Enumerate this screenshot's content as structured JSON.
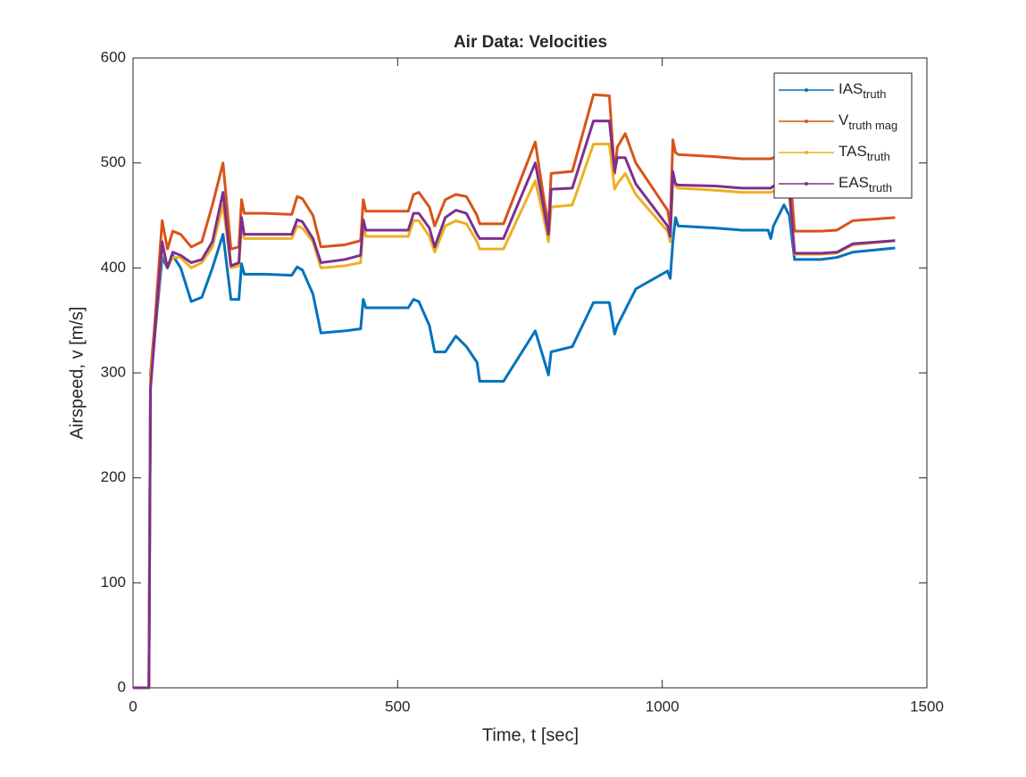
{
  "chart_data": {
    "type": "line",
    "title": "Air Data: Velocities",
    "xlabel": "Time, t [sec]",
    "ylabel": "Airspeed, v [m/s]",
    "xlim": [
      0,
      1500
    ],
    "xticks": [
      0,
      500,
      1000,
      1500
    ],
    "ylim": [
      0,
      600
    ],
    "yticks": [
      0,
      100,
      200,
      300,
      400,
      500,
      600
    ],
    "grid": false,
    "legend": "northeast",
    "x": [
      0,
      30,
      33,
      40,
      55,
      65,
      75,
      90,
      110,
      130,
      150,
      170,
      185,
      200,
      205,
      210,
      250,
      300,
      310,
      320,
      340,
      355,
      400,
      430,
      435,
      440,
      520,
      530,
      540,
      560,
      570,
      590,
      610,
      630,
      650,
      655,
      700,
      760,
      775,
      785,
      790,
      830,
      870,
      900,
      910,
      915,
      930,
      950,
      1010,
      1015,
      1020,
      1025,
      1030,
      1100,
      1150,
      1200,
      1205,
      1210,
      1230,
      1240,
      1250,
      1300,
      1330,
      1360,
      1440
    ],
    "series": [
      {
        "name": "IAS",
        "subscript": "truth",
        "color": "#0072BD",
        "values": [
          0,
          0,
          290,
          330,
          410,
          400,
          412,
          400,
          368,
          372,
          400,
          432,
          370,
          370,
          404,
          394,
          394,
          393,
          401,
          398,
          375,
          338,
          340,
          342,
          370,
          362,
          362,
          370,
          368,
          345,
          320,
          320,
          335,
          325,
          310,
          292,
          292,
          340,
          315,
          298,
          320,
          325,
          367,
          367,
          337,
          345,
          360,
          380,
          397,
          390,
          425,
          448,
          440,
          438,
          436,
          436,
          428,
          440,
          460,
          450,
          408,
          408,
          410,
          415,
          419
        ]
      },
      {
        "name": "V",
        "subscript": "truth mag",
        "color": "#D95319",
        "values": [
          0,
          0,
          300,
          340,
          445,
          418,
          435,
          432,
          420,
          425,
          460,
          500,
          418,
          420,
          465,
          452,
          452,
          451,
          468,
          466,
          450,
          420,
          422,
          426,
          465,
          454,
          454,
          470,
          472,
          458,
          440,
          465,
          470,
          468,
          450,
          442,
          442,
          520,
          470,
          440,
          490,
          492,
          565,
          564,
          490,
          515,
          528,
          500,
          455,
          440,
          522,
          510,
          508,
          506,
          504,
          504,
          504,
          505,
          505,
          500,
          435,
          435,
          436,
          445,
          448
        ]
      },
      {
        "name": "TAS",
        "subscript": "truth",
        "color": "#EDB120",
        "values": [
          0,
          0,
          295,
          330,
          420,
          400,
          410,
          410,
          400,
          405,
          420,
          460,
          400,
          402,
          440,
          428,
          428,
          428,
          440,
          438,
          425,
          400,
          402,
          405,
          440,
          430,
          430,
          445,
          445,
          430,
          415,
          440,
          445,
          442,
          425,
          418,
          418,
          483,
          450,
          425,
          458,
          460,
          518,
          518,
          475,
          480,
          490,
          470,
          435,
          425,
          485,
          478,
          476,
          474,
          472,
          472,
          472,
          473,
          470,
          470,
          413,
          413,
          414,
          422,
          426
        ]
      },
      {
        "name": "EAS",
        "subscript": "truth",
        "color": "#7E2F8E",
        "values": [
          0,
          0,
          285,
          330,
          425,
          400,
          415,
          412,
          405,
          408,
          425,
          472,
          402,
          405,
          448,
          432,
          432,
          432,
          446,
          444,
          428,
          405,
          408,
          412,
          446,
          436,
          436,
          452,
          452,
          438,
          420,
          448,
          455,
          452,
          432,
          428,
          428,
          500,
          460,
          432,
          475,
          476,
          540,
          540,
          492,
          505,
          505,
          480,
          440,
          430,
          492,
          480,
          479,
          478,
          476,
          476,
          476,
          478,
          476,
          475,
          414,
          414,
          415,
          423,
          426
        ]
      }
    ]
  }
}
